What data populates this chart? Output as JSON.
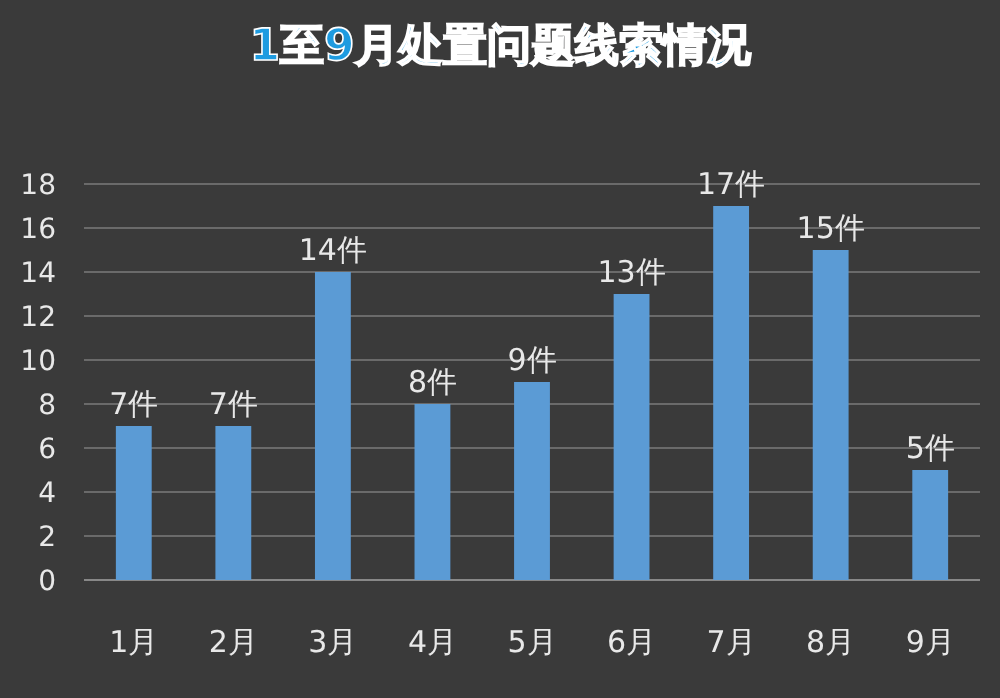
{
  "chart_data": {
    "type": "bar",
    "title": "1至9月处置问题线索情况",
    "categories": [
      "1月",
      "2月",
      "3月",
      "4月",
      "5月",
      "6月",
      "7月",
      "8月",
      "9月"
    ],
    "values": [
      7,
      7,
      14,
      8,
      9,
      13,
      17,
      15,
      5
    ],
    "value_labels": [
      "7件",
      "7件",
      "14件",
      "8件",
      "9件",
      "13件",
      "17件",
      "15件",
      "5件"
    ],
    "color": "#5b9bd5",
    "ylim": [
      0,
      18
    ],
    "yticks": [
      0,
      2,
      4,
      6,
      8,
      10,
      12,
      14,
      16,
      18
    ],
    "grid": "y"
  }
}
